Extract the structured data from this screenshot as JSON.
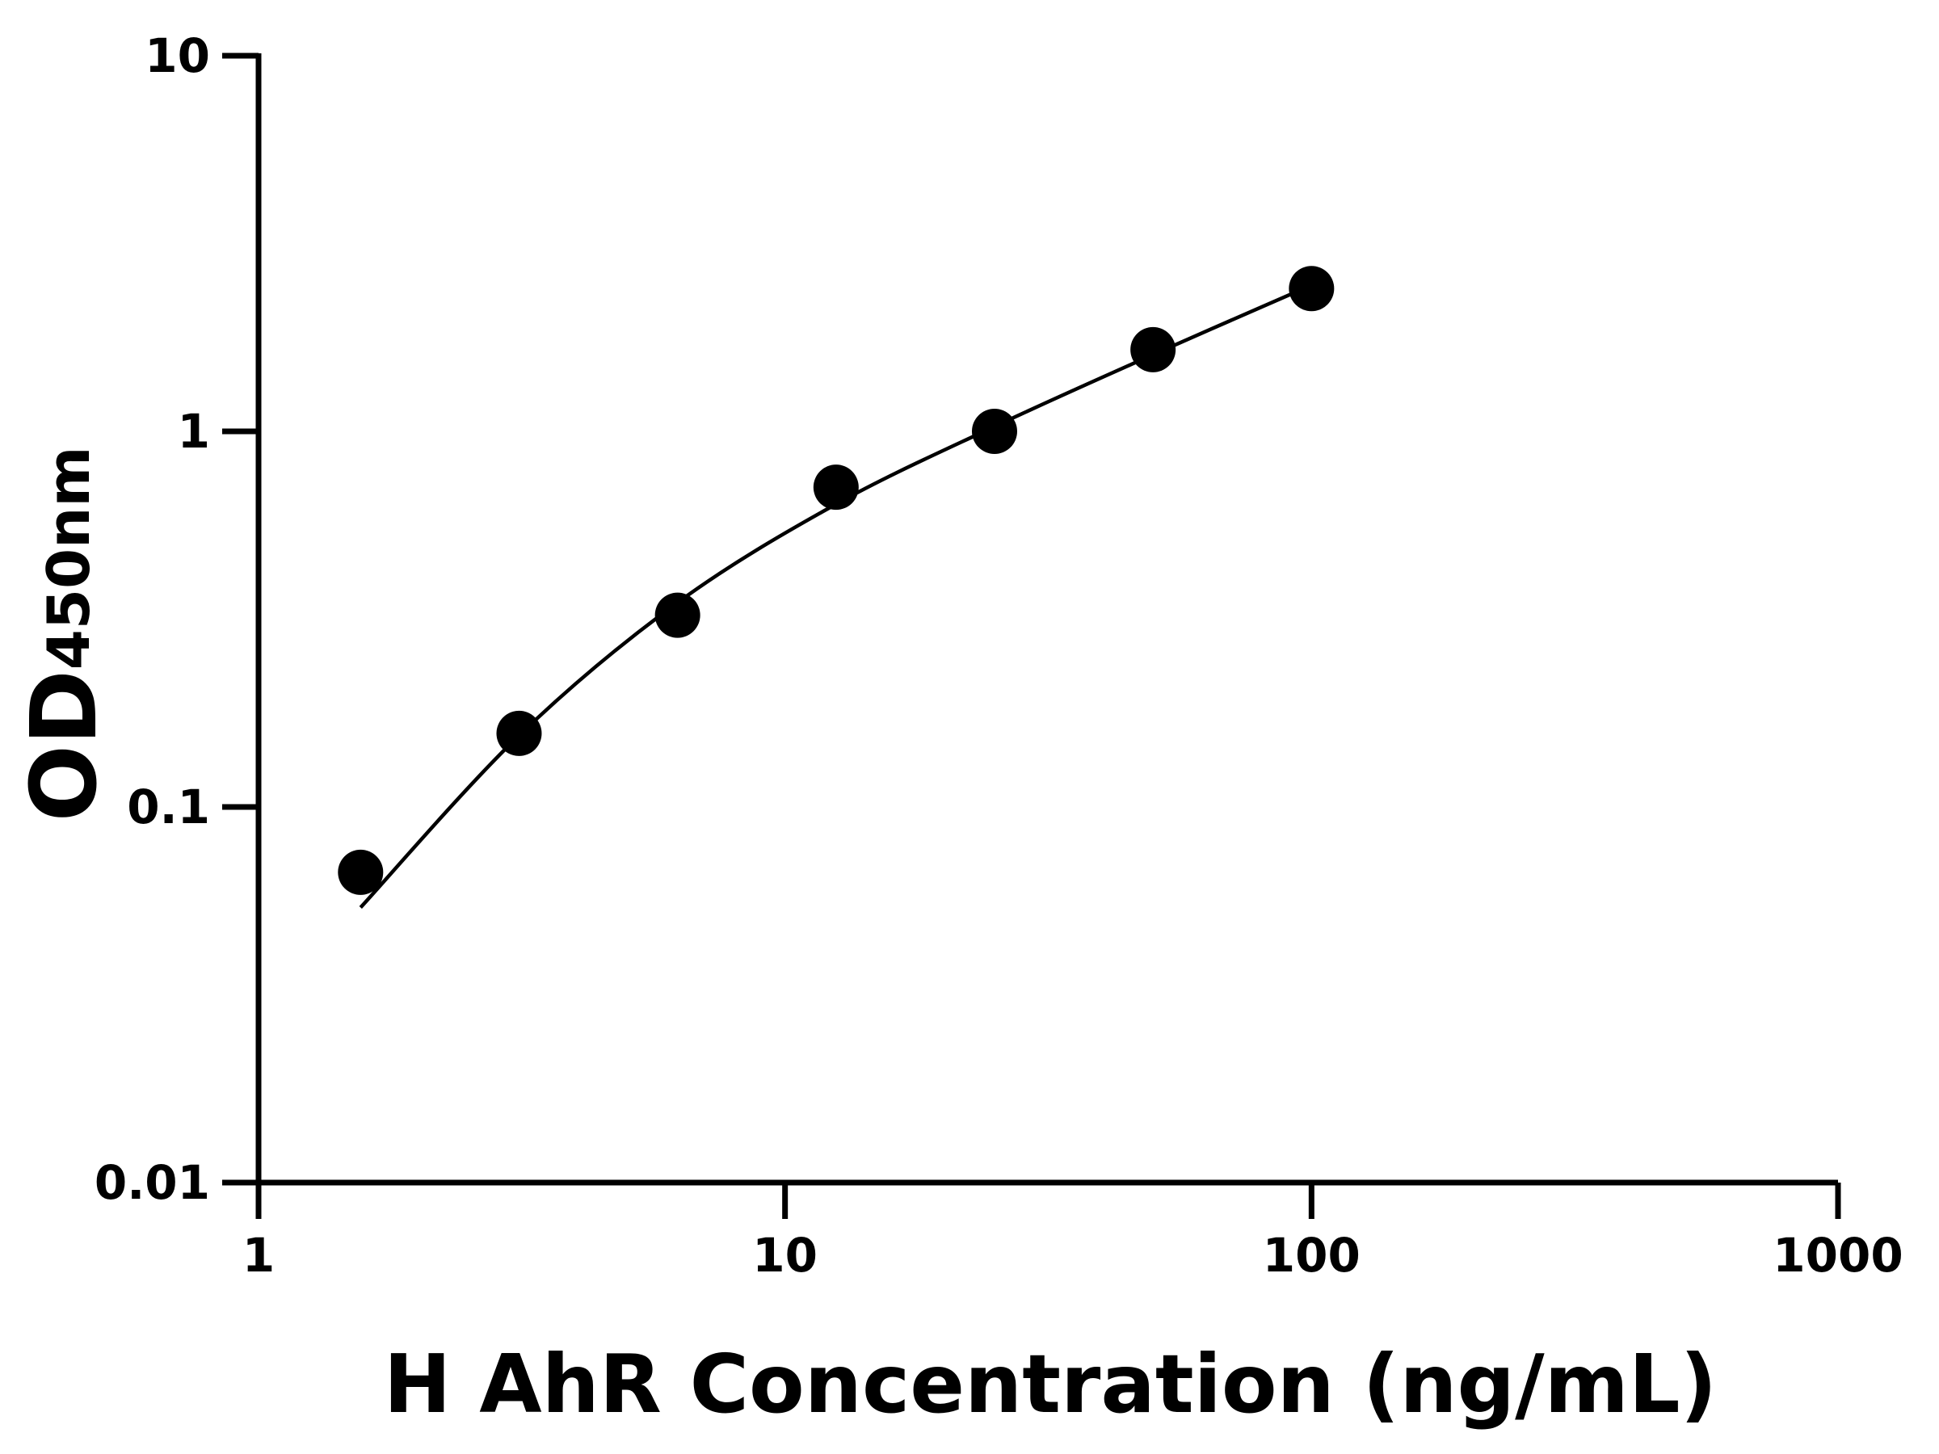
{
  "chart_data": {
    "type": "scatter",
    "title": "",
    "xlabel": "H AhR Concentration (ng/mL)",
    "ylabel_main": "OD",
    "ylabel_sub": "450nm",
    "x_scale": "log",
    "y_scale": "log",
    "xlim": [
      1,
      1000
    ],
    "ylim": [
      0.01,
      10
    ],
    "x_ticks": [
      "1",
      "10",
      "100",
      "1000"
    ],
    "y_ticks": [
      "0.01",
      "0.1",
      "1",
      "10"
    ],
    "grid": false,
    "legend": "none",
    "marker_color": "#000000",
    "points": [
      {
        "x": 1.5625,
        "y": 0.067
      },
      {
        "x": 3.125,
        "y": 0.157
      },
      {
        "x": 6.25,
        "y": 0.324
      },
      {
        "x": 12.5,
        "y": 0.71
      },
      {
        "x": 25,
        "y": 1.0
      },
      {
        "x": 50,
        "y": 1.65
      },
      {
        "x": 100,
        "y": 2.4
      }
    ],
    "fit_curve": [
      {
        "x": 1.5625,
        "y": 0.054
      },
      {
        "x": 3.125,
        "y": 0.155
      },
      {
        "x": 6.25,
        "y": 0.35
      },
      {
        "x": 12.5,
        "y": 0.64
      },
      {
        "x": 25,
        "y": 1.03
      },
      {
        "x": 50,
        "y": 1.6
      },
      {
        "x": 100,
        "y": 2.45
      }
    ]
  }
}
